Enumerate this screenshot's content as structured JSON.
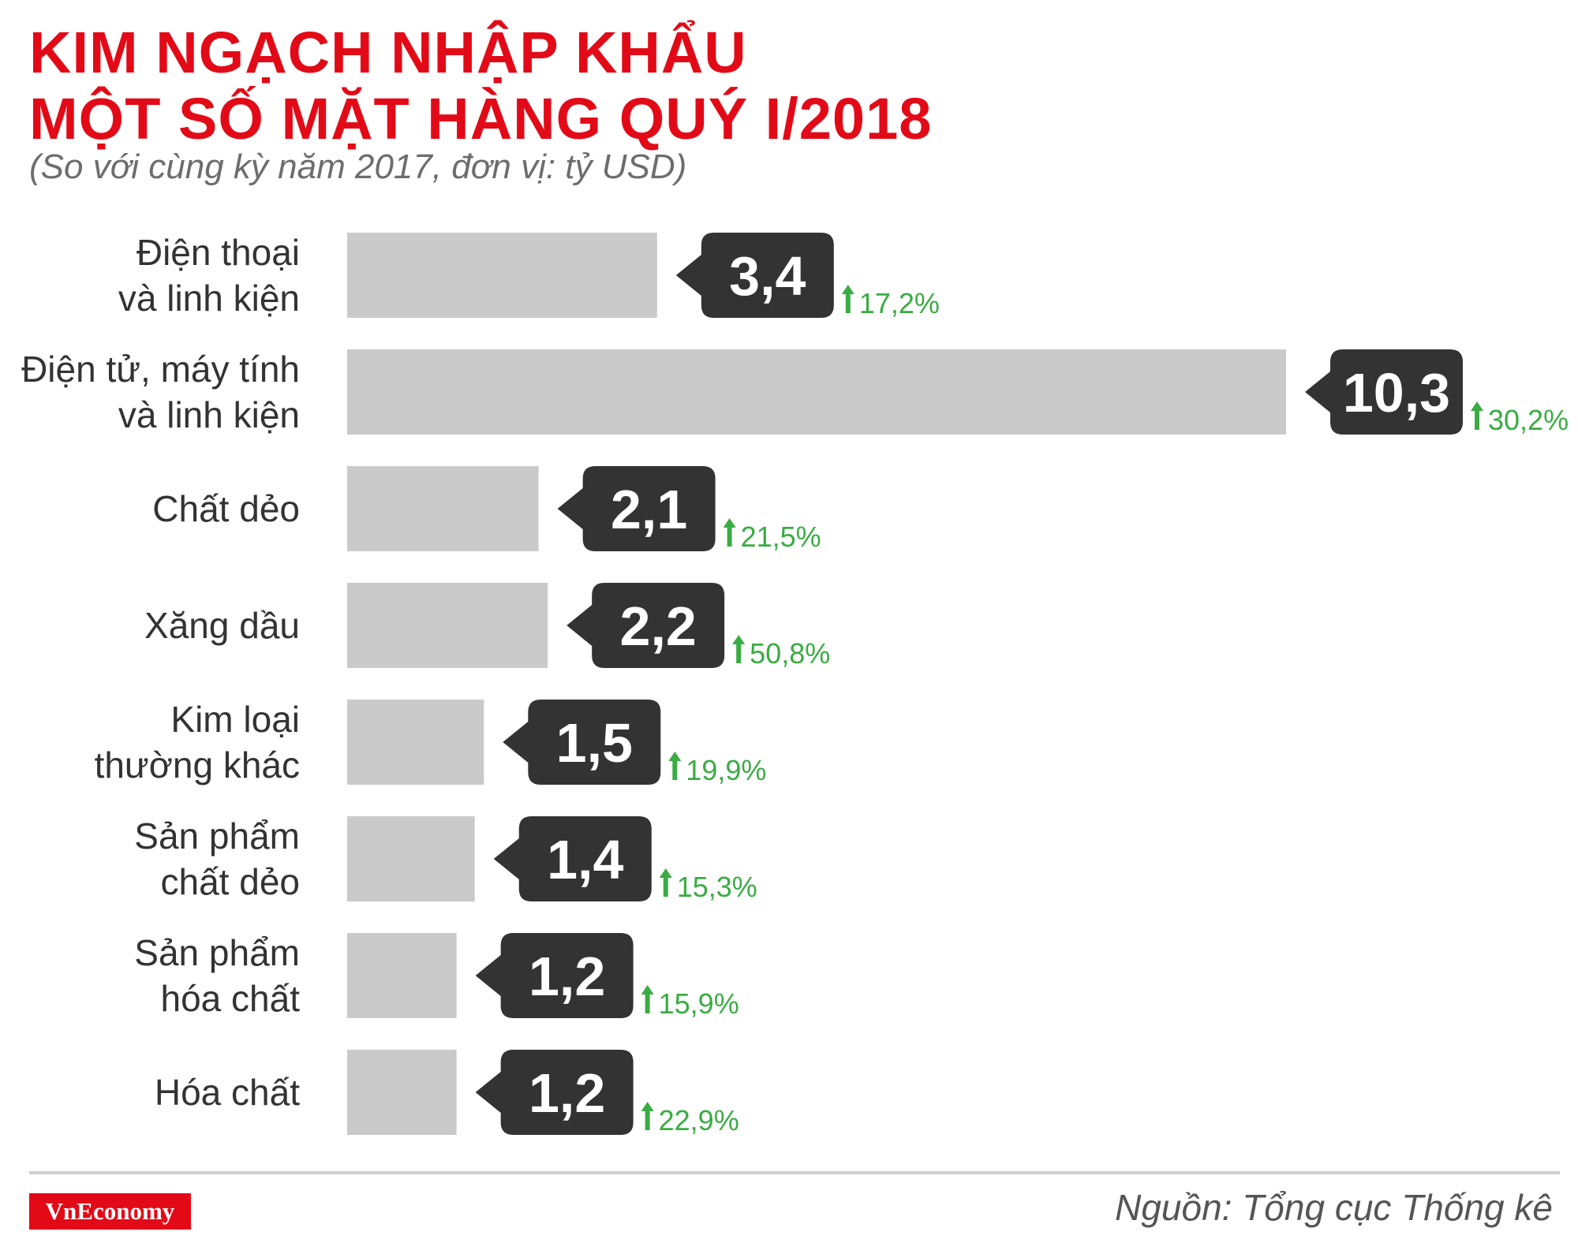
{
  "title_line1": "KIM NGẠCH NHẬP KHẨU",
  "title_line2": "MỘT SỐ MẶT HÀNG QUÝ I/2018",
  "subtitle": "(So với cùng kỳ năm 2017, đơn vị: tỷ USD)",
  "source": "Nguồn: Tổng cục Thống kê",
  "logo_text": "VnEconomy",
  "colors": {
    "title": "#e30a17",
    "bar": "#cbcacb",
    "value_box": "#333333",
    "increase": "#3aac43",
    "logo_bg": "#e30a17"
  },
  "chart_data": {
    "type": "bar",
    "orientation": "horizontal",
    "title": "KIM NGẠCH NHẬP KHẨU MỘT SỐ MẶT HÀNG QUÝ I/2018",
    "unit": "tỷ USD",
    "categories": [
      [
        "Điện thoại",
        "và linh kiện"
      ],
      [
        "Điện tử, máy tính",
        "và linh kiện"
      ],
      [
        "Chất dẻo"
      ],
      [
        "Xăng dầu"
      ],
      [
        "Kim loại",
        "thường khác"
      ],
      [
        "Sản phẩm",
        "chất dẻo"
      ],
      [
        "Sản phẩm",
        "hóa chất"
      ],
      [
        "Hóa chất"
      ]
    ],
    "values": [
      3.4,
      10.3,
      2.1,
      2.2,
      1.5,
      1.4,
      1.2,
      1.2
    ],
    "value_labels": [
      "3,4",
      "10,3",
      "2,1",
      "2,2",
      "1,5",
      "1,4",
      "1,2",
      "1,2"
    ],
    "change_labels": [
      "17,2%",
      "30,2%",
      "21,5%",
      "50,8%",
      "19,9%",
      "15,3%",
      "15,9%",
      "22,9%"
    ],
    "change_direction": "up",
    "xlim": [
      0,
      10.3
    ]
  }
}
